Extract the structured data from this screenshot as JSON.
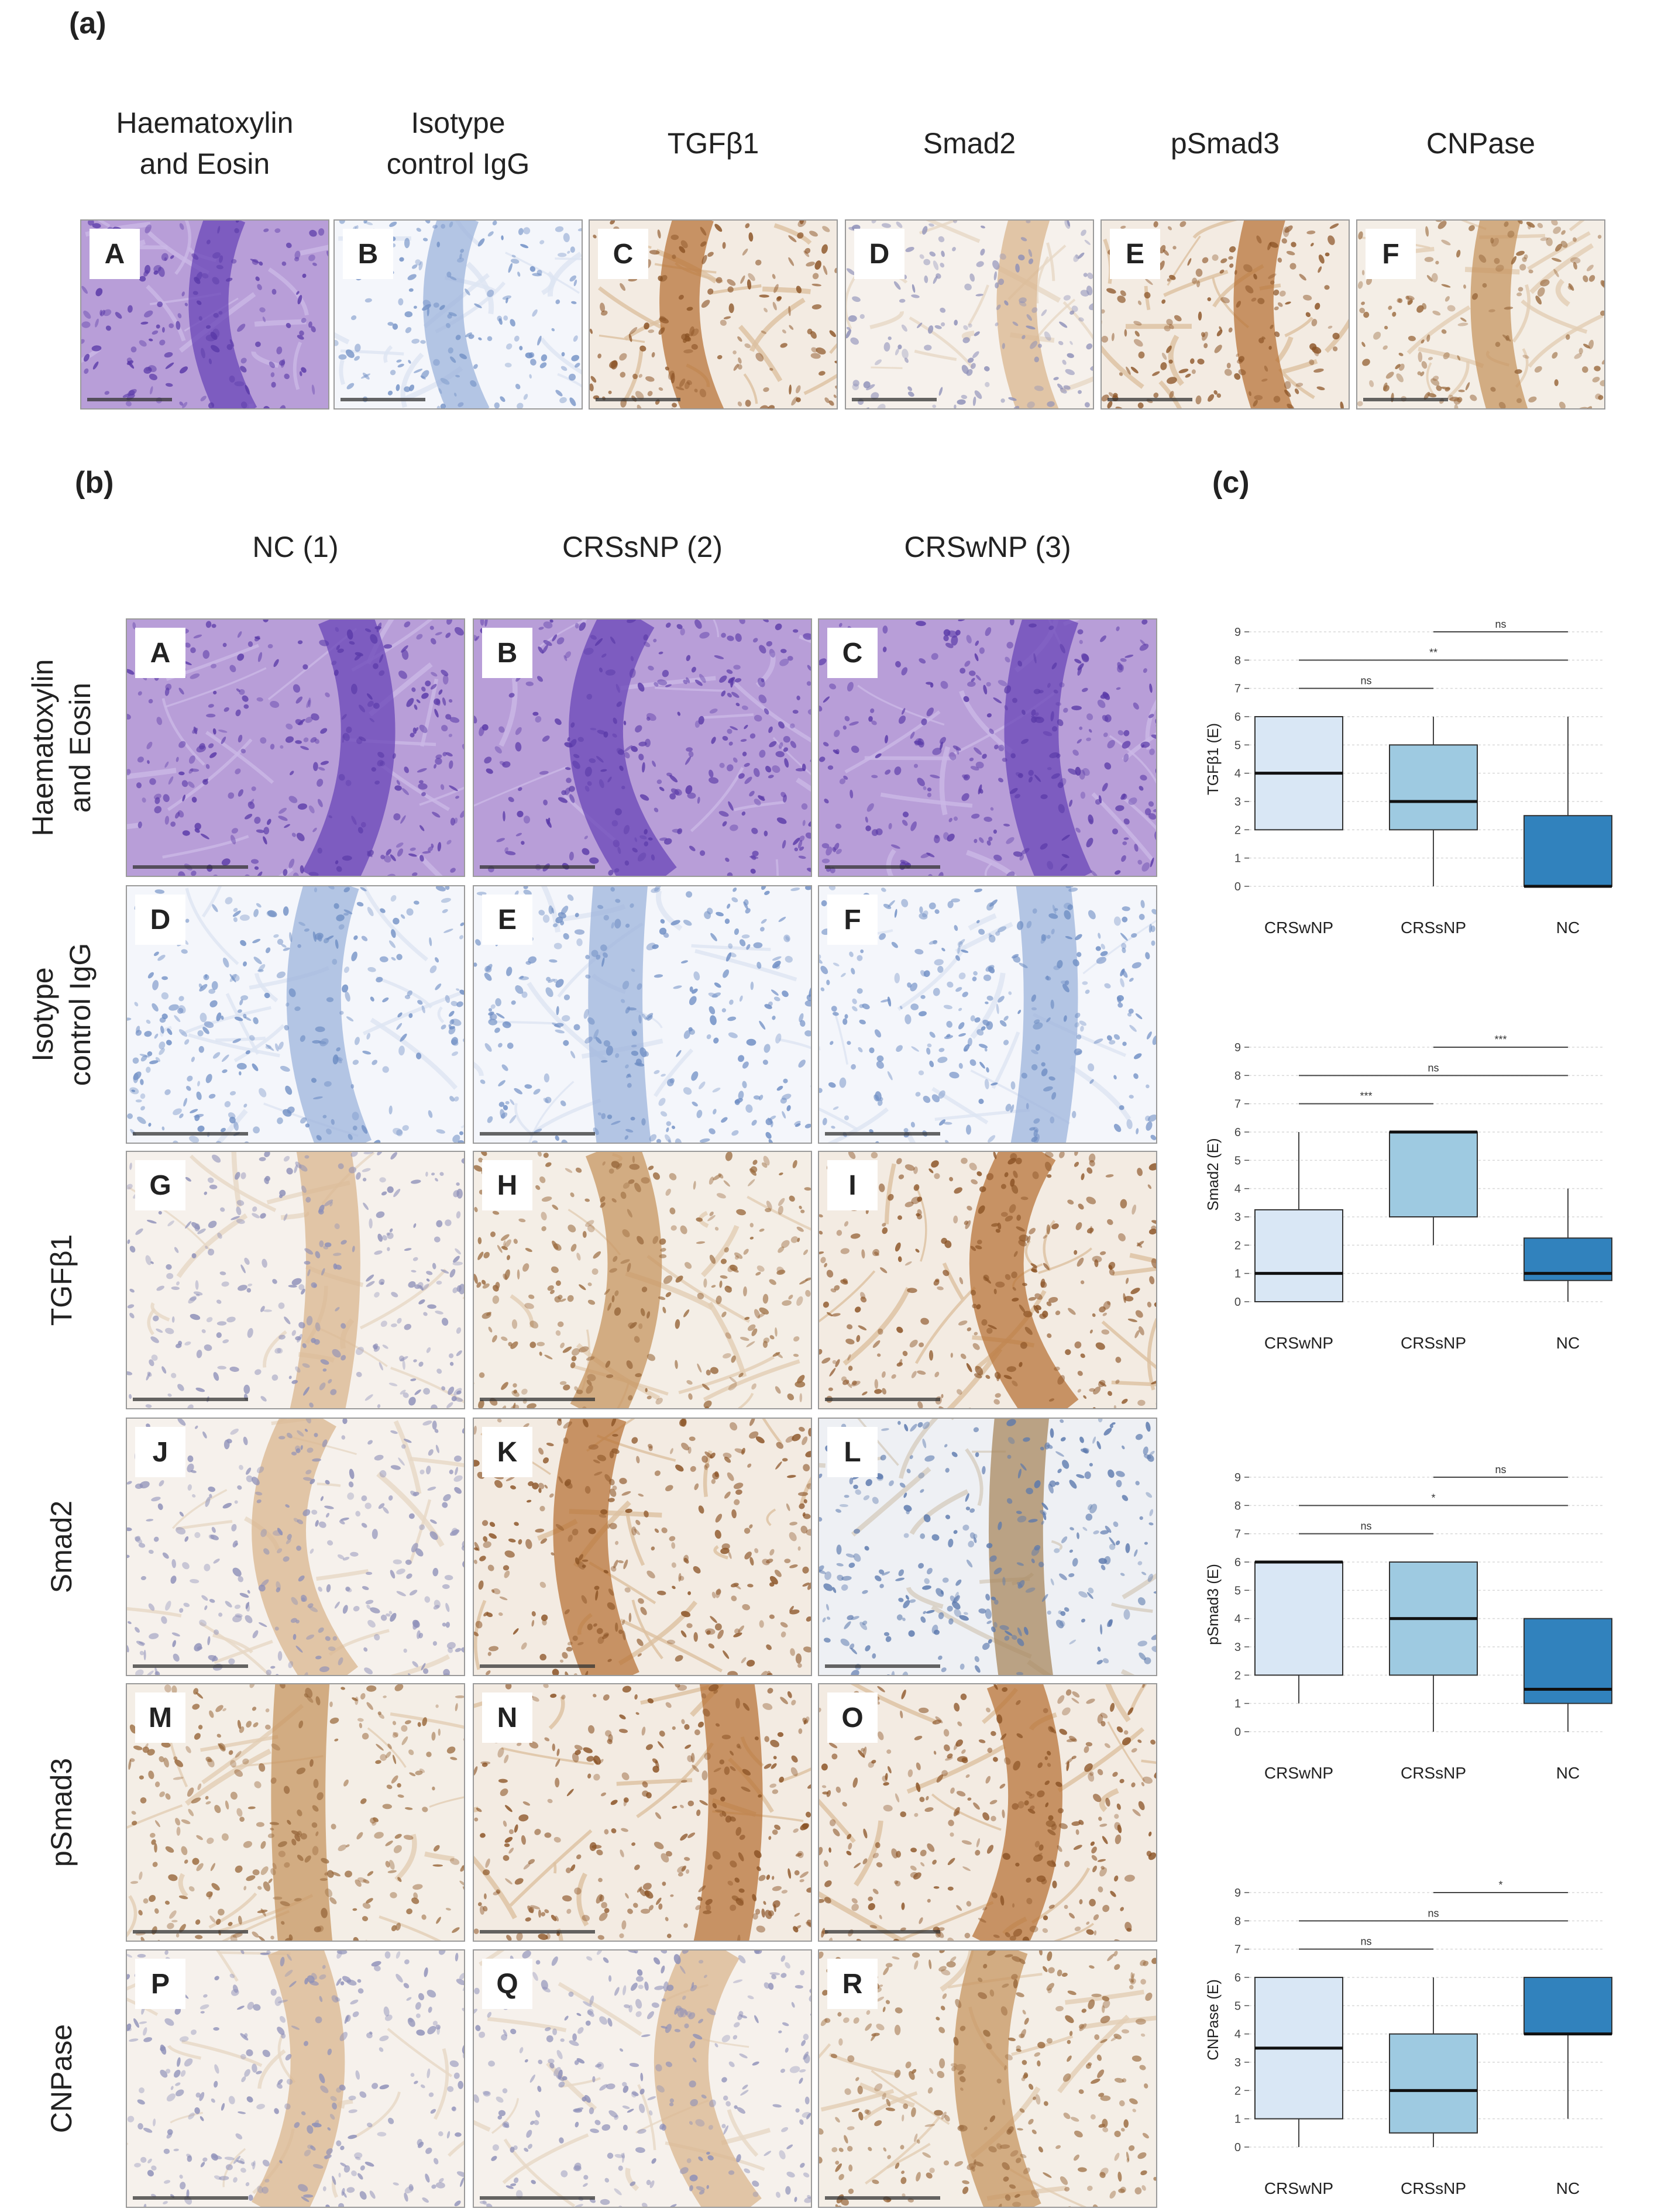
{
  "panel_labels": {
    "a": "(a)",
    "b": "(b)",
    "c": "(c)"
  },
  "section_a": {
    "columns": [
      {
        "title": "Haematoxylin\nand Eosin",
        "letter": "A",
        "stain": "he"
      },
      {
        "title": "Isotype\ncontrol IgG",
        "letter": "B",
        "stain": "iso"
      },
      {
        "title": "TGFβ1",
        "letter": "C",
        "stain": "brown-strong"
      },
      {
        "title": "Smad2",
        "letter": "D",
        "stain": "brown-light"
      },
      {
        "title": "pSmad3",
        "letter": "E",
        "stain": "brown-strong"
      },
      {
        "title": "CNPase",
        "letter": "F",
        "stain": "brown-mid"
      }
    ]
  },
  "section_b": {
    "columns": [
      "NC (1)",
      "CRSsNP (2)",
      "CRSwNP (3)"
    ],
    "rows": [
      {
        "label": "Haematoxylin\nand Eosin",
        "letters": [
          "A",
          "B",
          "C"
        ],
        "stains": [
          "he",
          "he",
          "he"
        ]
      },
      {
        "label": "Isotype\ncontrol IgG",
        "letters": [
          "D",
          "E",
          "F"
        ],
        "stains": [
          "iso",
          "iso",
          "iso"
        ]
      },
      {
        "label": "TGFβ1",
        "letters": [
          "G",
          "H",
          "I"
        ],
        "stains": [
          "brown-light",
          "brown-mid",
          "brown-strong"
        ]
      },
      {
        "label": "Smad2",
        "letters": [
          "J",
          "K",
          "L"
        ],
        "stains": [
          "brown-light",
          "brown-strong",
          "brown-blue"
        ]
      },
      {
        "label": "pSmad3",
        "letters": [
          "M",
          "N",
          "O"
        ],
        "stains": [
          "brown-mid",
          "brown-strong",
          "brown-strong"
        ]
      },
      {
        "label": "CNPase",
        "letters": [
          "P",
          "Q",
          "R"
        ],
        "stains": [
          "brown-light",
          "brown-light",
          "brown-mid"
        ]
      }
    ]
  },
  "colors": {
    "he_base": "#b89ed8",
    "he_nuclei": "#5a3aa8",
    "iso_base": "#f4f6fb",
    "iso_nuclei": "#6f8ec4",
    "brown_base": "#f3ebe2",
    "brown_strong": "#b8743a",
    "brown_light": "#d9b58f",
    "box_CRSwNP": "#d9e7f5",
    "box_CRSsNP": "#9ecae1",
    "box_NC": "#3182bd"
  },
  "chart_data": [
    {
      "type": "box",
      "ylabel": "TGFβ1 (E)",
      "categories": [
        "CRSwNP",
        "CRSsNP",
        "NC"
      ],
      "ylim": [
        0,
        9
      ],
      "yticks": [
        0,
        1,
        2,
        3,
        4,
        5,
        6,
        7,
        8,
        9
      ],
      "grid": true,
      "boxes": [
        {
          "min": 2,
          "q1": 2,
          "median": 4,
          "q3": 6,
          "max": 6
        },
        {
          "min": 0,
          "q1": 2,
          "median": 3,
          "q3": 5,
          "max": 6
        },
        {
          "min": 0,
          "q1": 0,
          "median": 0,
          "q3": 2.5,
          "max": 6
        }
      ],
      "significance": [
        {
          "from": 1,
          "to": 2,
          "label": "ns"
        },
        {
          "from": 0,
          "to": 2,
          "label": "**"
        },
        {
          "from": 0,
          "to": 1,
          "label": "ns"
        }
      ]
    },
    {
      "type": "box",
      "ylabel": "Smad2 (E)",
      "categories": [
        "CRSwNP",
        "CRSsNP",
        "NC"
      ],
      "ylim": [
        0,
        9
      ],
      "yticks": [
        0,
        1,
        2,
        3,
        4,
        5,
        6,
        7,
        8,
        9
      ],
      "grid": true,
      "boxes": [
        {
          "min": 0,
          "q1": 0,
          "median": 1,
          "q3": 3.25,
          "max": 6
        },
        {
          "min": 2,
          "q1": 3,
          "median": 6,
          "q3": 6,
          "max": 6
        },
        {
          "min": 0,
          "q1": 0.75,
          "median": 1,
          "q3": 2.25,
          "max": 4
        }
      ],
      "significance": [
        {
          "from": 1,
          "to": 2,
          "label": "***"
        },
        {
          "from": 0,
          "to": 2,
          "label": "ns"
        },
        {
          "from": 0,
          "to": 1,
          "label": "***"
        }
      ]
    },
    {
      "type": "box",
      "ylabel": "pSmad3 (E)",
      "categories": [
        "CRSwNP",
        "CRSsNP",
        "NC"
      ],
      "ylim": [
        0,
        9
      ],
      "yticks": [
        0,
        1,
        2,
        3,
        4,
        5,
        6,
        7,
        8,
        9
      ],
      "grid": true,
      "boxes": [
        {
          "min": 1,
          "q1": 2,
          "median": 6,
          "q3": 6,
          "max": 6
        },
        {
          "min": 0,
          "q1": 2,
          "median": 4,
          "q3": 6,
          "max": 6
        },
        {
          "min": 0,
          "q1": 1,
          "median": 1.5,
          "q3": 4,
          "max": 4
        }
      ],
      "significance": [
        {
          "from": 1,
          "to": 2,
          "label": "ns"
        },
        {
          "from": 0,
          "to": 2,
          "label": "*"
        },
        {
          "from": 0,
          "to": 1,
          "label": "ns"
        }
      ]
    },
    {
      "type": "box",
      "ylabel": "CNPase (E)",
      "categories": [
        "CRSwNP",
        "CRSsNP",
        "NC"
      ],
      "ylim": [
        0,
        9
      ],
      "yticks": [
        0,
        1,
        2,
        3,
        4,
        5,
        6,
        7,
        8,
        9
      ],
      "grid": true,
      "boxes": [
        {
          "min": 0,
          "q1": 1,
          "median": 3.5,
          "q3": 6,
          "max": 6
        },
        {
          "min": 0,
          "q1": 0.5,
          "median": 2,
          "q3": 4,
          "max": 6
        },
        {
          "min": 1,
          "q1": 4,
          "median": 4,
          "q3": 6,
          "max": 6
        }
      ],
      "significance": [
        {
          "from": 1,
          "to": 2,
          "label": "*"
        },
        {
          "from": 0,
          "to": 2,
          "label": "ns"
        },
        {
          "from": 0,
          "to": 1,
          "label": "ns"
        }
      ]
    }
  ]
}
